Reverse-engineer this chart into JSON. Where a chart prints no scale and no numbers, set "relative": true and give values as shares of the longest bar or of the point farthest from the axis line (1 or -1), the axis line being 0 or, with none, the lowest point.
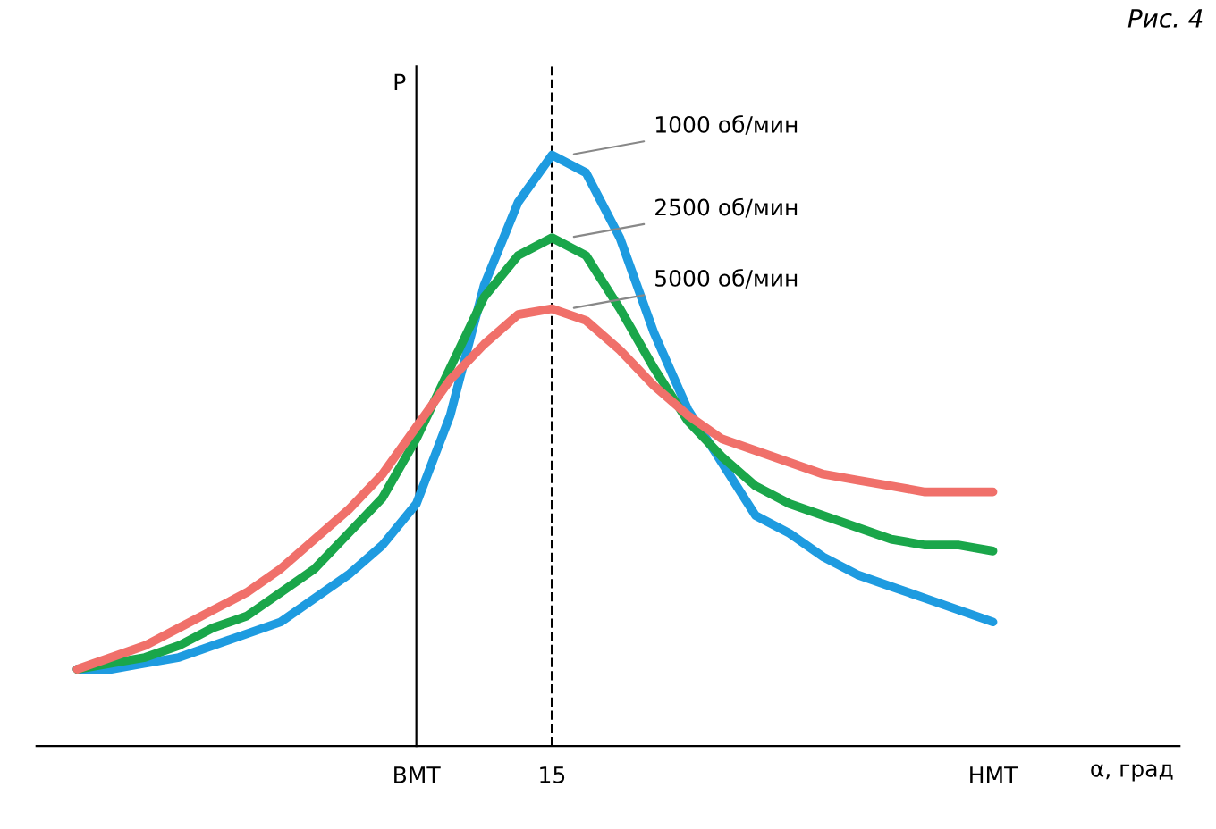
{
  "chart_data": {
    "type": "line",
    "relative": true,
    "ylabel": "P",
    "xlabel": "α, град",
    "categories": [
      null,
      null,
      null,
      null,
      null,
      null,
      null,
      null,
      null,
      null,
      "ВМТ",
      null,
      null,
      null,
      "15",
      null,
      null,
      null,
      null,
      null,
      null,
      null,
      null,
      null,
      null,
      null,
      null,
      "НМТ"
    ],
    "series": [
      {
        "name": "1000 об/мин",
        "color": "#1e9be0",
        "values": [
          0.13,
          0.13,
          0.14,
          0.15,
          0.17,
          0.19,
          0.21,
          0.25,
          0.29,
          0.34,
          0.41,
          0.56,
          0.78,
          0.92,
          1,
          0.97,
          0.86,
          0.7,
          0.57,
          0.48,
          0.39,
          0.36,
          0.32,
          0.29,
          0.27,
          0.25,
          0.23,
          0.21
        ]
      },
      {
        "name": "2500 об/мин",
        "color": "#1aa64a",
        "values": [
          0.13,
          0.14,
          0.15,
          0.17,
          0.2,
          0.22,
          0.26,
          0.3,
          0.36,
          0.42,
          0.52,
          0.64,
          0.76,
          0.83,
          0.86,
          0.83,
          0.74,
          0.64,
          0.55,
          0.49,
          0.44,
          0.41,
          0.39,
          0.37,
          0.35,
          0.34,
          0.34,
          0.33
        ]
      },
      {
        "name": "5000 об/мин",
        "color": "#f0706a",
        "values": [
          0.13,
          0.15,
          0.17,
          0.2,
          0.23,
          0.26,
          0.3,
          0.35,
          0.4,
          0.46,
          0.54,
          0.62,
          0.68,
          0.73,
          0.74,
          0.72,
          0.67,
          0.61,
          0.56,
          0.52,
          0.5,
          0.48,
          0.46,
          0.45,
          0.44,
          0.43,
          0.43,
          0.43
        ]
      }
    ],
    "ref_lines": [
      {
        "axis": "x",
        "value": "15",
        "color": "#000000",
        "line_style": "dashed"
      }
    ],
    "annotations": [
      "Рис. 4"
    ],
    "grid": false,
    "legend": false,
    "line_style": "solid"
  }
}
